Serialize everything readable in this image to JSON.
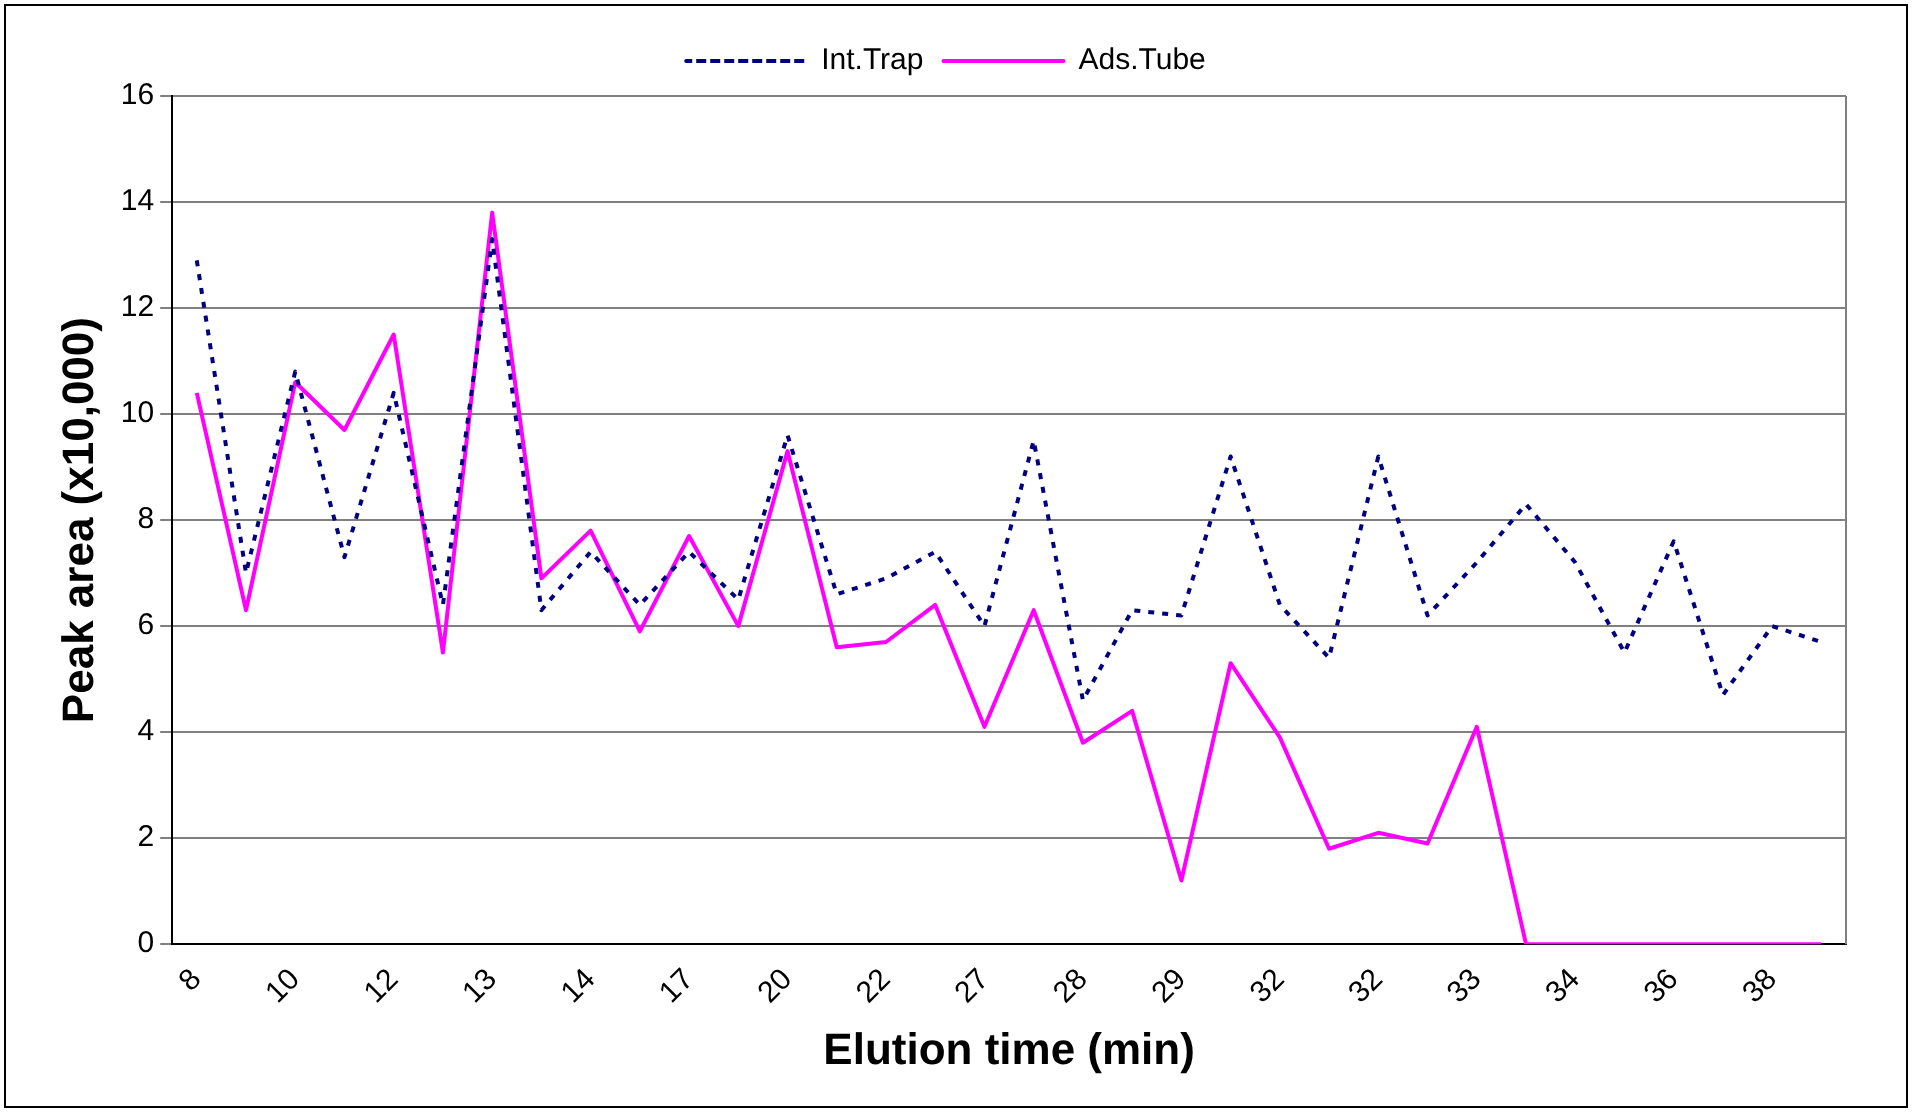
{
  "chart_data": {
    "type": "line",
    "xlabel": "Elution time (min)",
    "ylabel": "Peak area (x10,000)",
    "categories": [
      "8",
      null,
      "10",
      null,
      "12",
      null,
      "13",
      null,
      "14",
      null,
      "17",
      null,
      "20",
      null,
      "22",
      null,
      "27",
      null,
      "28",
      null,
      "29",
      null,
      "32",
      null,
      "32",
      null,
      "33",
      null,
      "34",
      null,
      "36",
      null,
      "38",
      null
    ],
    "series": [
      {
        "name": "Int.Trap",
        "color": "#000080",
        "line_style": "dotted",
        "values": [
          12.9,
          7.0,
          10.8,
          7.3,
          10.4,
          6.4,
          13.3,
          6.3,
          7.4,
          6.4,
          7.4,
          6.5,
          9.6,
          6.6,
          6.9,
          7.4,
          6.0,
          9.5,
          4.6,
          6.3,
          6.2,
          9.2,
          6.4,
          5.4,
          9.2,
          6.2,
          7.2,
          8.3,
          7.2,
          5.5,
          7.6,
          4.7,
          6.0,
          5.7
        ]
      },
      {
        "name": "Ads.Tube",
        "color": "#ff00ff",
        "line_style": "solid",
        "values": [
          10.4,
          6.3,
          10.6,
          9.7,
          11.5,
          5.5,
          13.8,
          6.9,
          7.8,
          5.9,
          7.7,
          6.0,
          9.3,
          5.6,
          5.7,
          6.4,
          4.1,
          6.3,
          3.8,
          4.4,
          1.2,
          5.3,
          3.9,
          1.8,
          2.1,
          1.9,
          4.1,
          0,
          0,
          0,
          0,
          0,
          0,
          0
        ]
      }
    ],
    "ylim": [
      0,
      16
    ],
    "yticks": [
      0,
      2,
      4,
      6,
      8,
      10,
      12,
      14,
      16
    ],
    "grid": "y",
    "legend": "top",
    "marker": "none"
  }
}
